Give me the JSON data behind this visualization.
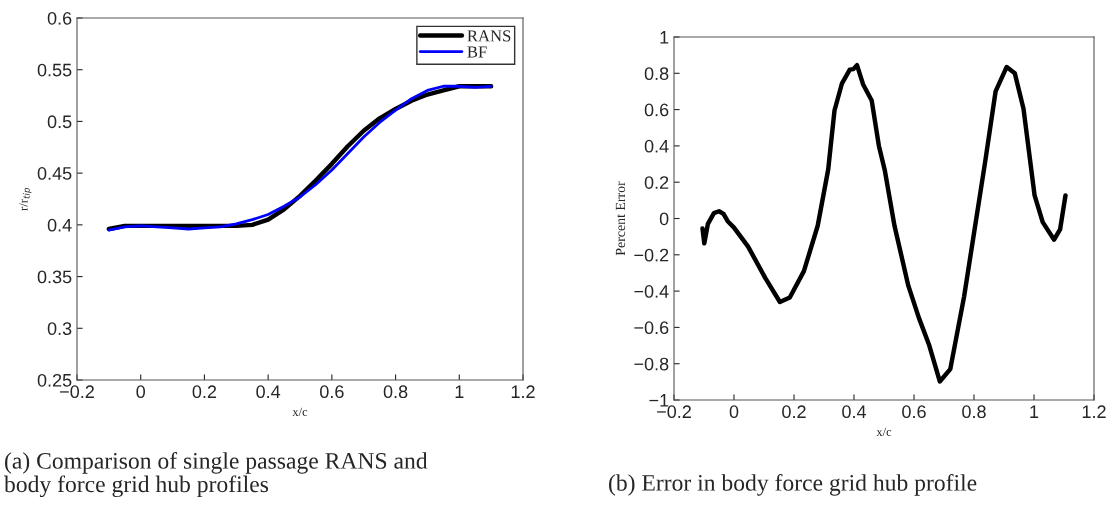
{
  "chart_data": [
    {
      "type": "line",
      "xlabel": "x/c",
      "ylabel": "r/r$_{tip}$",
      "xlim": [
        -0.2,
        1.2
      ],
      "xticks": [
        {
          "value": -0.2,
          "label": "−0.2"
        },
        0,
        0.2,
        0.4,
        0.6,
        0.8,
        1,
        1.2
      ],
      "ylim": [
        0.25,
        0.6
      ],
      "yticks": [
        0.25,
        0.3,
        0.35,
        0.4,
        0.45,
        0.5,
        0.55,
        0.6
      ],
      "grid": false,
      "legend": "top right",
      "marker": "none",
      "line_style": "solid",
      "annotations": [
        "(a) Comparison of single passage RANS and\nbody force grid hub profiles"
      ],
      "series": [
        {
          "name": "RANS",
          "color": "#000000",
          "x": [
            -0.1,
            -0.05,
            0,
            0.1,
            0.2,
            0.3,
            0.35,
            0.4,
            0.45,
            0.5,
            0.55,
            0.6,
            0.65,
            0.7,
            0.75,
            0.8,
            0.85,
            0.9,
            0.95,
            1.0,
            1.05,
            1.1
          ],
          "values": [
            0.396,
            0.399,
            0.399,
            0.399,
            0.399,
            0.399,
            0.4,
            0.405,
            0.415,
            0.428,
            0.443,
            0.459,
            0.476,
            0.491,
            0.503,
            0.512,
            0.52,
            0.526,
            0.53,
            0.534,
            0.534,
            0.534
          ]
        },
        {
          "name": "BF",
          "color": "#0000ff",
          "x": [
            -0.1,
            -0.05,
            0,
            0.05,
            0.1,
            0.15,
            0.2,
            0.25,
            0.3,
            0.35,
            0.4,
            0.45,
            0.5,
            0.55,
            0.6,
            0.65,
            0.7,
            0.75,
            0.8,
            0.85,
            0.9,
            0.95,
            1.0,
            1.05,
            1.1
          ],
          "values": [
            0.395,
            0.398,
            0.399,
            0.398,
            0.397,
            0.396,
            0.397,
            0.398,
            0.401,
            0.405,
            0.41,
            0.418,
            0.427,
            0.439,
            0.453,
            0.469,
            0.485,
            0.499,
            0.511,
            0.522,
            0.53,
            0.534,
            0.534,
            0.533,
            0.534
          ]
        }
      ]
    },
    {
      "type": "line",
      "xlabel": "x/c",
      "ylabel": "Percent Error",
      "xlim": [
        -0.2,
        1.2
      ],
      "xticks": [
        {
          "value": -0.2,
          "label": "−0.2"
        },
        0,
        0.2,
        0.4,
        0.6,
        0.8,
        1,
        1.2
      ],
      "ylim": [
        -1,
        1
      ],
      "yticks": [
        {
          "value": -1,
          "label": "−1"
        },
        {
          "value": -0.8,
          "label": "−0.8"
        },
        {
          "value": -0.6,
          "label": "−0.6"
        },
        {
          "value": -0.4,
          "label": "−0.4"
        },
        {
          "value": -0.2,
          "label": "−0.2"
        },
        0,
        0.2,
        0.4,
        0.6,
        0.8,
        1
      ],
      "grid": false,
      "marker": "none",
      "line_style": "solid",
      "annotations": [
        "(b) Error in body force grid hub profile"
      ],
      "series": [
        {
          "color": "#000000",
          "x": [
            -0.105,
            -0.099,
            -0.087,
            -0.067,
            -0.05,
            -0.035,
            -0.021,
            0,
            0.047,
            0.105,
            0.153,
            0.186,
            0.233,
            0.279,
            0.314,
            0.335,
            0.36,
            0.386,
            0.398,
            0.41,
            0.43,
            0.459,
            0.483,
            0.503,
            0.535,
            0.581,
            0.616,
            0.651,
            0.686,
            0.721,
            0.767,
            0.802,
            0.837,
            0.872,
            0.909,
            0.936,
            0.965,
            1.002,
            1.029,
            1.067,
            1.087,
            1.105
          ],
          "values": [
            -0.055,
            -0.137,
            -0.03,
            0.03,
            0.04,
            0.025,
            -0.015,
            -0.05,
            -0.155,
            -0.33,
            -0.46,
            -0.435,
            -0.29,
            -0.04,
            0.27,
            0.595,
            0.745,
            0.82,
            0.823,
            0.845,
            0.74,
            0.65,
            0.4,
            0.263,
            -0.04,
            -0.37,
            -0.546,
            -0.7,
            -0.898,
            -0.83,
            -0.43,
            -0.06,
            0.31,
            0.7,
            0.835,
            0.8,
            0.605,
            0.127,
            -0.02,
            -0.117,
            -0.06,
            0.127
          ]
        }
      ]
    }
  ]
}
